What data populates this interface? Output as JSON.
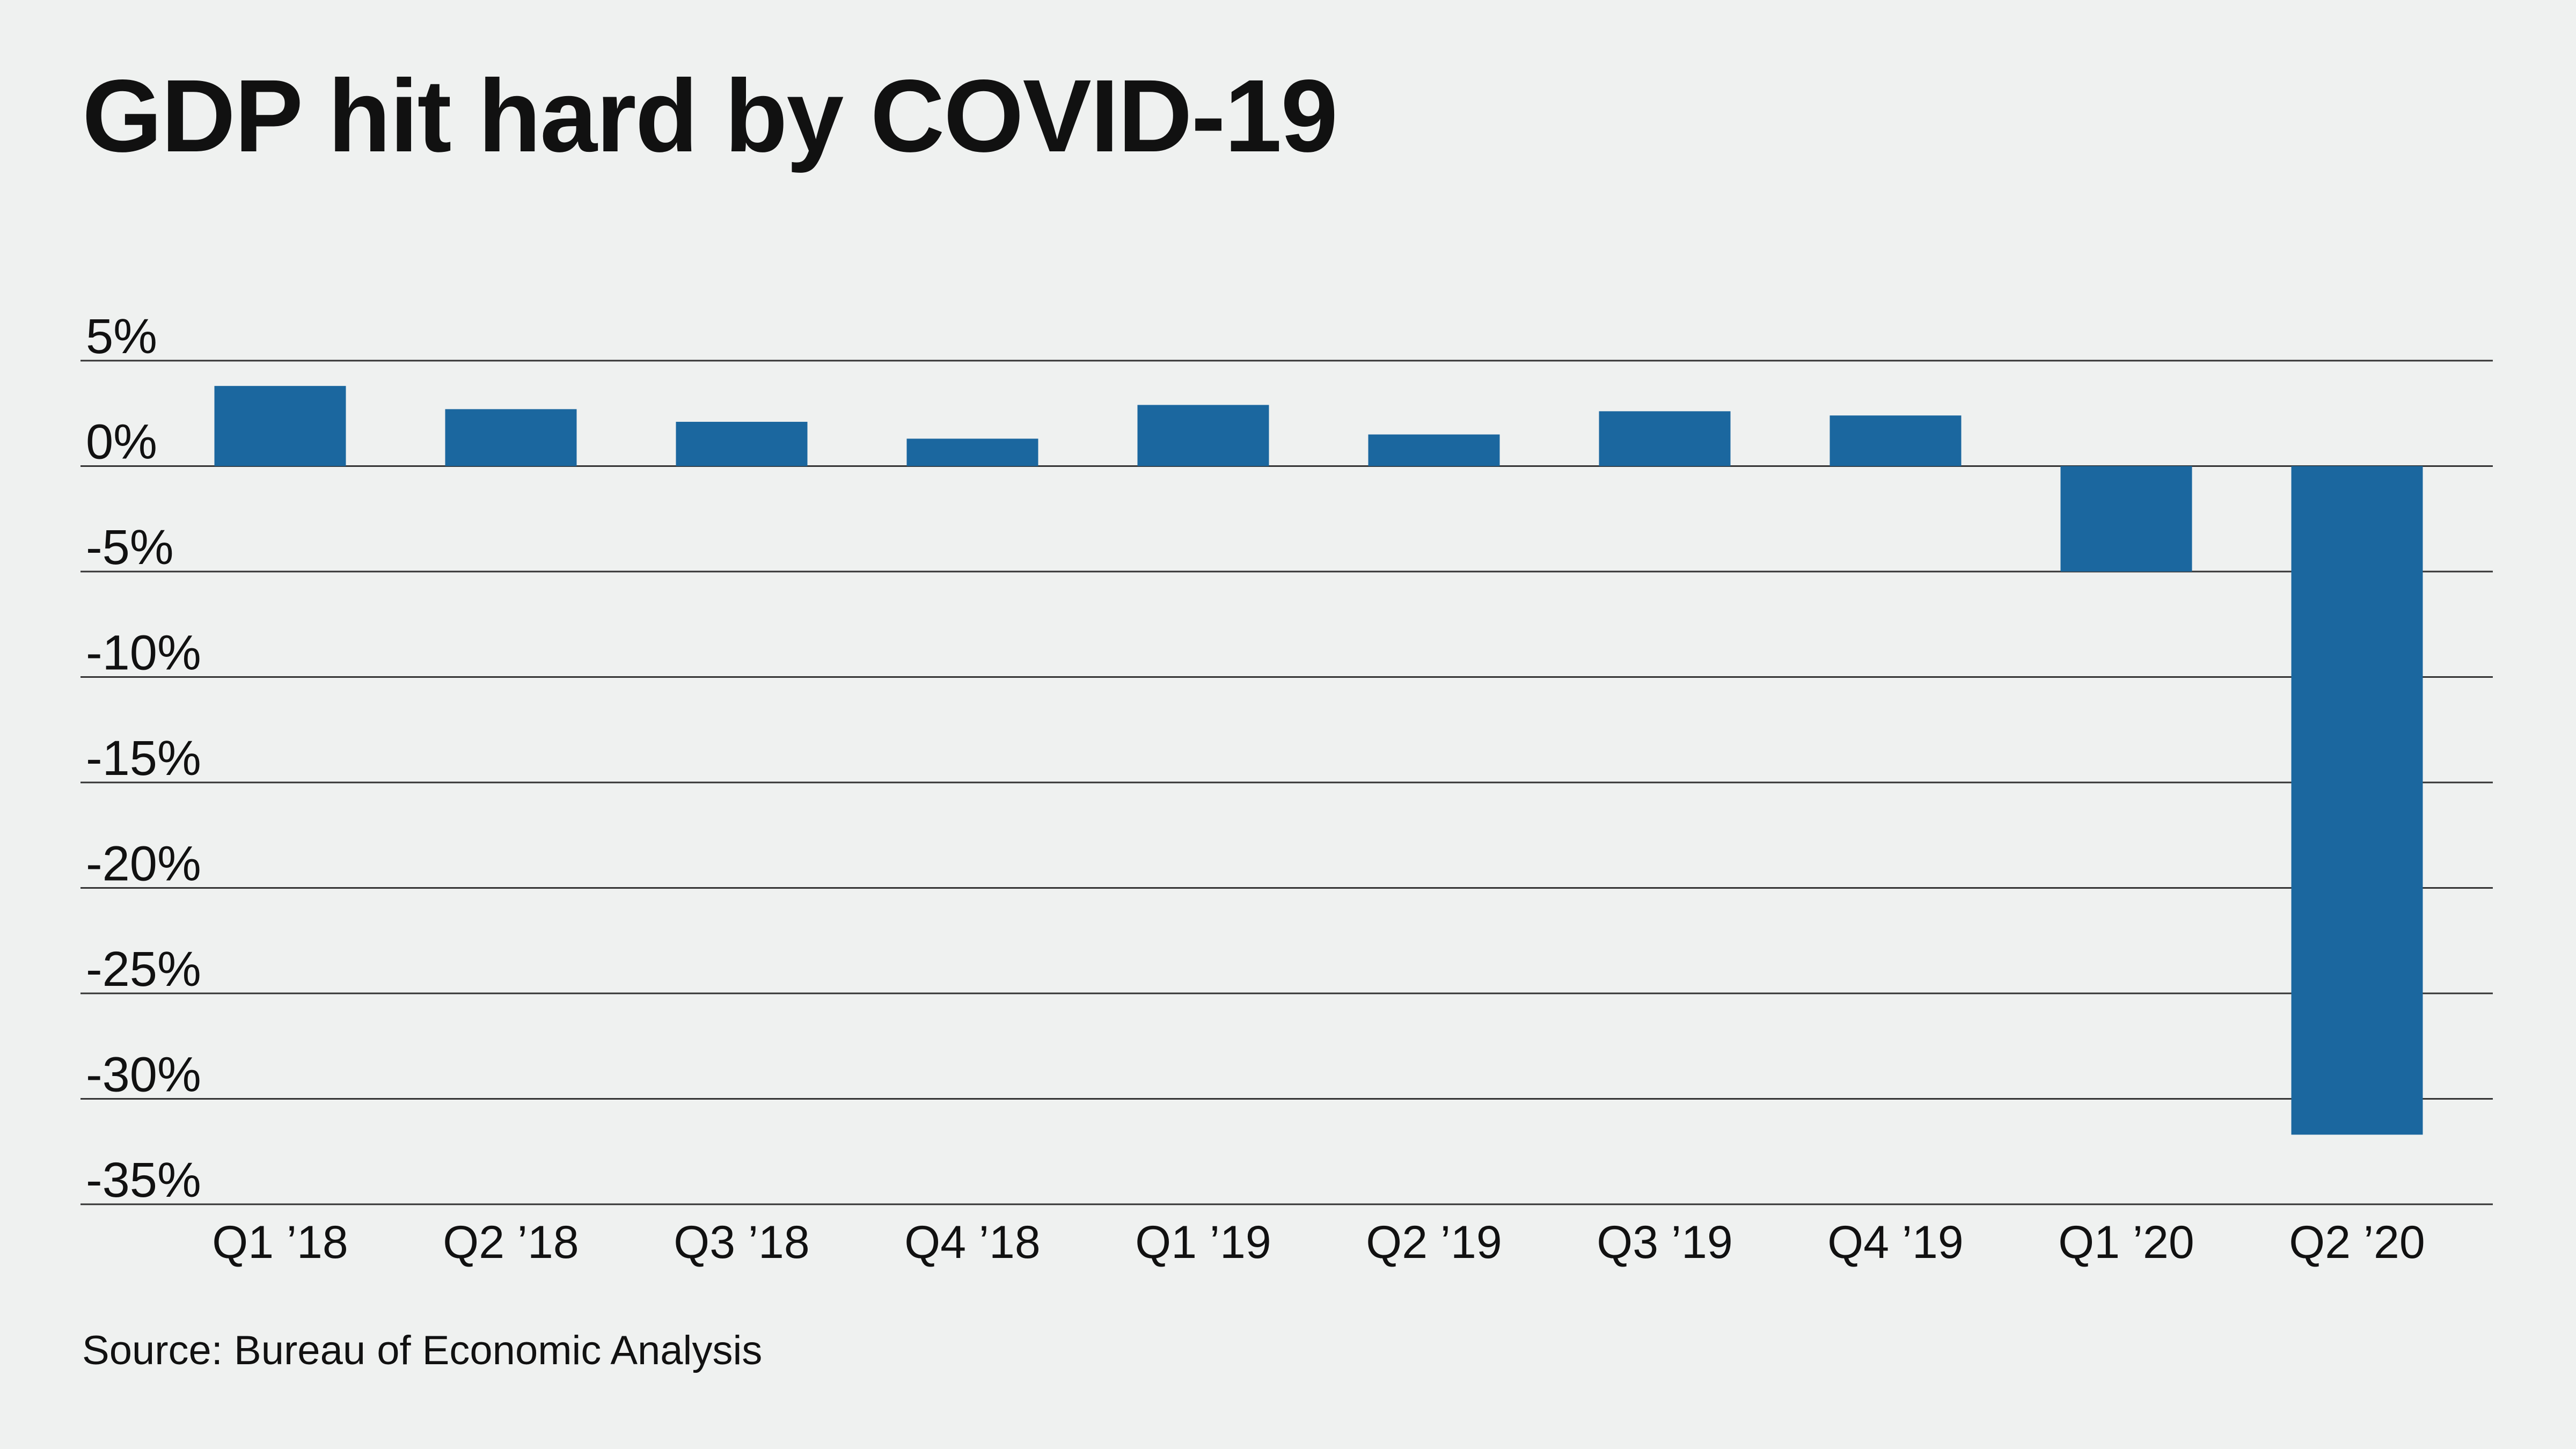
{
  "chart_data": {
    "type": "bar",
    "title": "GDP hit hard by COVID-19",
    "source": "Source: Bureau of Economic Analysis",
    "categories": [
      "Q1 ’18",
      "Q2 ’18",
      "Q3 ’18",
      "Q4 ’18",
      "Q1 ’19",
      "Q2 ’19",
      "Q3 ’19",
      "Q4 ’19",
      "Q1 ’20",
      "Q2 ’20"
    ],
    "values": [
      3.8,
      2.7,
      2.1,
      1.3,
      2.9,
      1.5,
      2.6,
      2.4,
      -5.0,
      -31.7
    ],
    "yticks": [
      5,
      0,
      -5,
      -10,
      -15,
      -20,
      -25,
      -30,
      -35
    ],
    "ytick_labels": [
      "5%",
      "0%",
      "-5%",
      "-10%",
      "-15%",
      "-20%",
      "-25%",
      "-30%",
      "-35%"
    ],
    "ylim": [
      -35,
      5
    ],
    "xlabel": "",
    "ylabel": "",
    "grid": true,
    "legend": "none",
    "colors": {
      "bar": "#1b679f",
      "grid": "#333333",
      "background": "#eff1f0"
    }
  }
}
